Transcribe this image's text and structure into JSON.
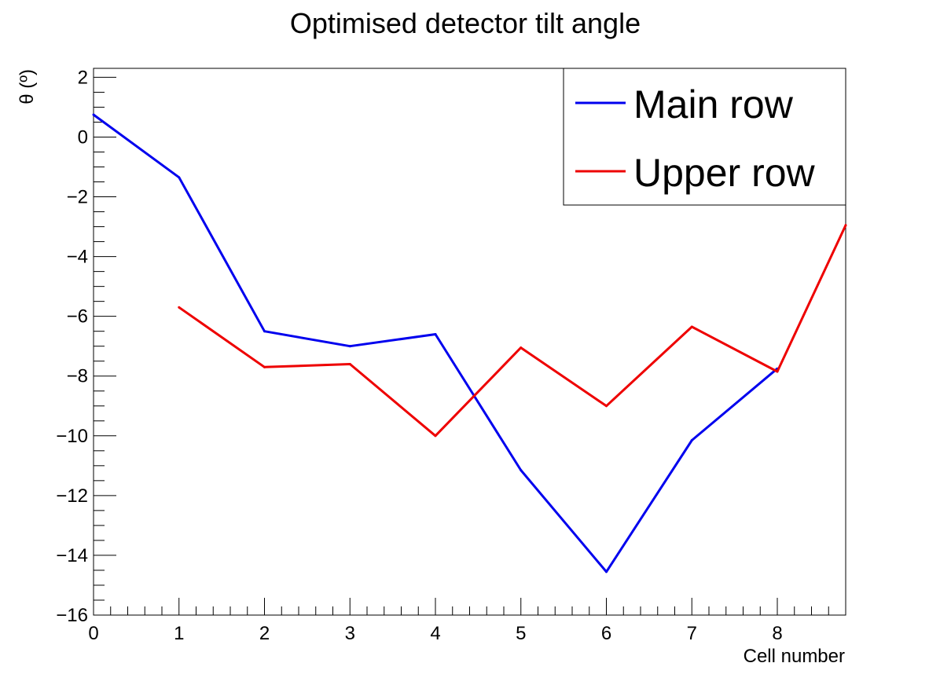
{
  "chart_data": {
    "type": "line",
    "title": "Optimised detector tilt angle",
    "xlabel": "Cell number",
    "ylabel": "θ (º)",
    "xlim": [
      0,
      8.8
    ],
    "ylim": [
      -16,
      2.3
    ],
    "x_ticks": [
      0,
      1,
      2,
      3,
      4,
      5,
      6,
      7,
      8
    ],
    "y_ticks": [
      2,
      0,
      -2,
      -4,
      -6,
      -8,
      -10,
      -12,
      -14,
      -16
    ],
    "x_tick_labels": [
      "0",
      "1",
      "2",
      "3",
      "4",
      "5",
      "6",
      "7",
      "8"
    ],
    "y_tick_labels": [
      "2",
      "0",
      "−2",
      "−4",
      "−6",
      "−8",
      "−10",
      "−12",
      "−14",
      "−16"
    ],
    "grid": false,
    "legend_position": "top-right",
    "series": [
      {
        "name": "Main row",
        "color": "#0000ee",
        "x": [
          0,
          1,
          2,
          3,
          4,
          5,
          6,
          7,
          8
        ],
        "y": [
          0.75,
          -1.35,
          -6.5,
          -7.0,
          -6.6,
          -11.15,
          -14.55,
          -10.15,
          -7.75
        ]
      },
      {
        "name": "Upper row",
        "color": "#ee0000",
        "x": [
          1,
          2,
          3,
          4,
          5,
          6,
          7,
          8,
          8.8
        ],
        "y": [
          -5.7,
          -7.7,
          -7.6,
          -10.0,
          -7.05,
          -9.0,
          -6.35,
          -7.85,
          -2.95
        ]
      }
    ]
  }
}
